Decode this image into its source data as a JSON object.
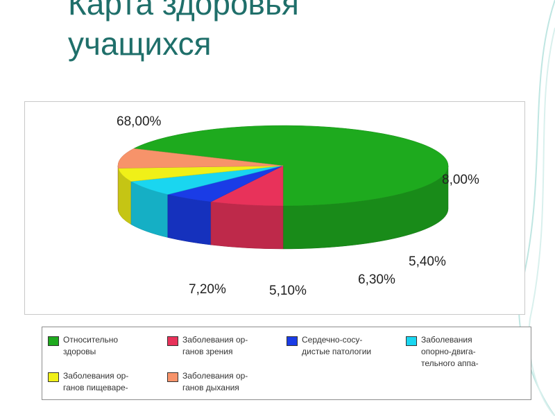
{
  "title": {
    "line1": "Карта здоровья",
    "line2": "учащихся"
  },
  "colors": {
    "title": "#1f6f6a",
    "slices": [
      "#1eaa1e",
      "#e8325a",
      "#1a3ce6",
      "#1ad6f0",
      "#f0f018",
      "#f7936a"
    ]
  },
  "chart_data": {
    "type": "pie",
    "style": "3d",
    "categories": [
      "Относительно здоровы",
      "Заболевания ор-ганов зрения",
      "Сердечно-сосу-дистые патологии",
      "Заболевания опорно-двига-тельного аппа-",
      "Заболевания ор-ганов пищеваре-",
      "Заболевания ор-ганов дыхания"
    ],
    "values": [
      68.0,
      7.2,
      5.1,
      6.3,
      5.4,
      8.0
    ],
    "data_labels": [
      "68,00%",
      "7,20%",
      "5,10%",
      "6,30%",
      "5,40%",
      "8,00%"
    ],
    "legend_position": "bottom"
  },
  "legend": {
    "items": [
      {
        "line1": "Относительно",
        "line2": "здоровы"
      },
      {
        "line1": "Заболевания ор-",
        "line2": "ганов зрения"
      },
      {
        "line1": "Сердечно-сосу-",
        "line2": "дистые патологии"
      },
      {
        "line1": "Заболевания",
        "line2": "опорно-двига-",
        "line3": "тельного аппа-"
      },
      {
        "line1": "Заболевания ор-",
        "line2": "ганов пищеваре-"
      },
      {
        "line1": "Заболевания ор-",
        "line2": "ганов дыхания"
      }
    ]
  }
}
